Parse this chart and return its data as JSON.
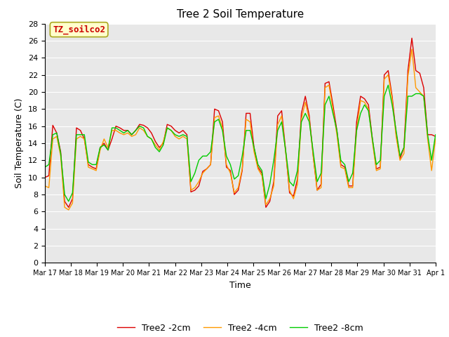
{
  "title": "Tree 2 Soil Temperature",
  "xlabel": "Time",
  "ylabel": "Soil Temperature (C)",
  "ylim": [
    0,
    28
  ],
  "yticks": [
    0,
    2,
    4,
    6,
    8,
    10,
    12,
    14,
    16,
    18,
    20,
    22,
    24,
    26,
    28
  ],
  "annotation_text": "TZ_soilco2",
  "annotation_color": "#cc0000",
  "annotation_bg": "#ffffcc",
  "annotation_border": "#aaa820",
  "line_colors": {
    "2cm": "#dd0000",
    "4cm": "#ff9900",
    "8cm": "#00cc00"
  },
  "legend_labels": [
    "Tree2 -2cm",
    "Tree2 -4cm",
    "Tree2 -8cm"
  ],
  "bg_color": "#e8e8e8",
  "x_tick_labels": [
    "Mar 17",
    "Mar 18",
    "Mar 19",
    "Mar 20",
    "Mar 21",
    "Mar 22",
    "Mar 23",
    "Mar 24",
    "Mar 25",
    "Mar 26",
    "Mar 27",
    "Mar 28",
    "Mar 29",
    "Mar 30",
    "Mar 31",
    "Apr 1"
  ],
  "data_2cm": [
    10.0,
    10.2,
    16.1,
    15.2,
    13.0,
    7.2,
    6.5,
    7.5,
    15.8,
    15.5,
    14.5,
    11.5,
    11.2,
    11.0,
    13.5,
    14.0,
    13.2,
    14.5,
    16.0,
    15.8,
    15.5,
    15.5,
    15.0,
    15.5,
    16.2,
    16.1,
    15.8,
    15.2,
    14.2,
    13.5,
    14.0,
    16.2,
    16.0,
    15.5,
    15.2,
    15.5,
    15.0,
    8.3,
    8.5,
    9.0,
    10.7,
    11.0,
    11.5,
    18.0,
    17.8,
    16.5,
    11.2,
    10.8,
    8.0,
    8.5,
    10.8,
    17.5,
    17.5,
    13.5,
    11.2,
    10.5,
    6.5,
    7.2,
    9.5,
    17.2,
    17.8,
    13.2,
    8.2,
    7.8,
    9.8,
    17.5,
    19.5,
    17.2,
    12.5,
    8.5,
    9.2,
    21.0,
    21.2,
    18.5,
    15.5,
    11.5,
    11.2,
    9.0,
    9.0,
    16.5,
    19.5,
    19.2,
    18.5,
    14.5,
    11.0,
    11.2,
    22.0,
    22.5,
    19.5,
    15.2,
    12.2,
    13.5,
    22.5,
    26.3,
    22.5,
    22.2,
    20.5,
    15.0,
    15.0,
    14.8
  ],
  "data_4cm": [
    9.0,
    8.8,
    14.5,
    14.8,
    12.5,
    6.5,
    6.2,
    7.0,
    14.5,
    14.8,
    14.5,
    11.2,
    11.0,
    10.8,
    13.2,
    14.5,
    13.5,
    15.5,
    15.5,
    15.2,
    15.0,
    15.2,
    14.8,
    15.0,
    15.8,
    15.5,
    14.8,
    14.5,
    13.8,
    13.2,
    14.2,
    15.8,
    15.5,
    14.8,
    14.5,
    14.8,
    14.5,
    8.5,
    8.8,
    9.5,
    10.5,
    11.0,
    11.5,
    17.0,
    17.2,
    15.8,
    11.5,
    10.5,
    8.2,
    8.8,
    11.0,
    16.8,
    16.5,
    13.0,
    11.0,
    10.2,
    6.8,
    7.5,
    9.0,
    16.2,
    17.2,
    13.0,
    8.5,
    7.5,
    9.2,
    16.8,
    18.8,
    16.8,
    12.5,
    8.5,
    8.8,
    20.5,
    20.8,
    18.0,
    15.0,
    11.2,
    11.0,
    8.8,
    8.8,
    15.5,
    19.0,
    18.8,
    18.0,
    14.2,
    10.8,
    11.0,
    21.5,
    22.0,
    19.2,
    14.8,
    12.0,
    12.8,
    21.8,
    25.0,
    20.5,
    20.0,
    19.5,
    14.5,
    10.8,
    14.5
  ],
  "data_8cm": [
    11.2,
    11.5,
    15.0,
    15.2,
    12.8,
    8.0,
    7.2,
    8.2,
    15.0,
    15.0,
    15.0,
    11.8,
    11.5,
    11.5,
    13.5,
    13.8,
    13.2,
    15.8,
    15.8,
    15.5,
    15.2,
    15.5,
    15.0,
    15.5,
    16.0,
    15.8,
    14.8,
    14.5,
    13.5,
    13.0,
    13.8,
    15.8,
    15.5,
    15.0,
    14.8,
    15.0,
    14.8,
    9.5,
    10.5,
    12.0,
    12.5,
    12.5,
    13.0,
    16.5,
    16.8,
    15.5,
    12.5,
    11.5,
    9.8,
    10.2,
    12.5,
    15.5,
    15.5,
    13.5,
    11.5,
    10.8,
    7.5,
    9.2,
    12.0,
    15.5,
    16.5,
    13.2,
    9.5,
    9.0,
    10.8,
    16.5,
    17.5,
    16.5,
    13.0,
    9.5,
    10.5,
    18.5,
    19.5,
    17.5,
    15.5,
    12.0,
    11.5,
    9.5,
    10.5,
    15.5,
    17.5,
    18.5,
    17.8,
    14.5,
    11.5,
    12.0,
    19.5,
    20.8,
    18.5,
    15.5,
    12.5,
    13.5,
    19.5,
    19.5,
    19.8,
    19.8,
    19.5,
    15.0,
    12.0,
    15.0
  ]
}
